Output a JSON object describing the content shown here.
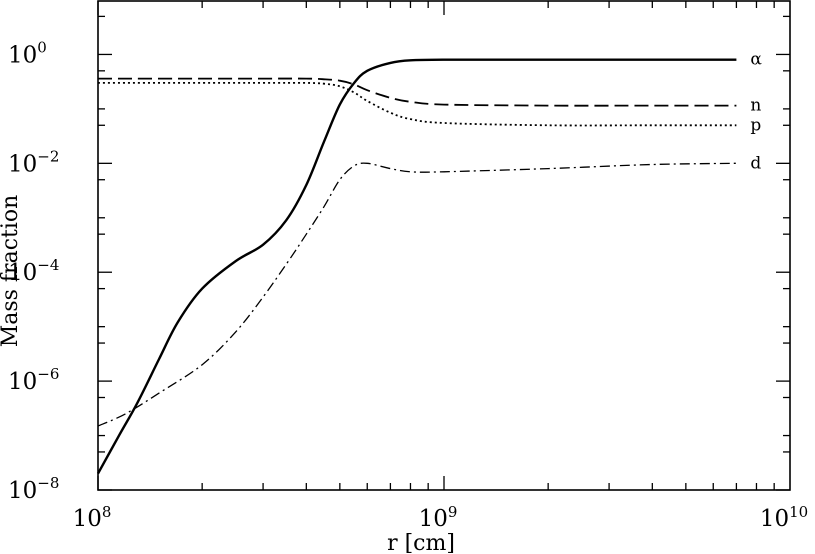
{
  "chart_data": {
    "type": "line",
    "xlabel": "r [cm]",
    "ylabel": "Mass fraction",
    "xscale": "log",
    "yscale": "log",
    "xlim": [
      100000000,
      10000000000
    ],
    "ylim": [
      1e-08,
      10
    ],
    "x_ticks": [
      {
        "base": "10",
        "exp": "8",
        "value": 100000000
      },
      {
        "base": "10",
        "exp": "9",
        "value": 1000000000
      },
      {
        "base": "10",
        "exp": "10",
        "value": 10000000000
      }
    ],
    "y_ticks": [
      {
        "base": "10",
        "exp": "−8",
        "value": 1e-08
      },
      {
        "base": "10",
        "exp": "−6",
        "value": 1e-06
      },
      {
        "base": "10",
        "exp": "−4",
        "value": 0.0001
      },
      {
        "base": "10",
        "exp": "−2",
        "value": 0.01
      },
      {
        "base": "10",
        "exp": "0",
        "value": 1
      }
    ],
    "grid": false,
    "legend": "inline labels at right end of curves",
    "series": [
      {
        "name": "α",
        "style": "solid",
        "x": [
          100000000,
          115000000,
          130000000,
          150000000,
          170000000,
          200000000,
          250000000,
          300000000,
          350000000,
          400000000,
          450000000,
          500000000,
          550000000,
          600000000,
          700000000,
          800000000,
          1000000000,
          2000000000,
          4000000000,
          7000000000
        ],
        "y": [
          2e-08,
          1e-07,
          4e-07,
          2.5e-06,
          1.2e-05,
          5e-05,
          0.00016,
          0.00032,
          0.0009,
          0.004,
          0.025,
          0.12,
          0.3,
          0.5,
          0.7,
          0.78,
          0.8,
          0.8,
          0.8,
          0.8
        ]
      },
      {
        "name": "n",
        "style": "dashed",
        "x": [
          100000000,
          200000000,
          300000000,
          400000000,
          450000000,
          500000000,
          550000000,
          600000000,
          700000000,
          800000000,
          1000000000,
          2000000000,
          4000000000,
          7000000000
        ],
        "y": [
          0.36,
          0.36,
          0.36,
          0.36,
          0.35,
          0.33,
          0.28,
          0.22,
          0.16,
          0.135,
          0.12,
          0.115,
          0.115,
          0.115
        ]
      },
      {
        "name": "p",
        "style": "dotted",
        "x": [
          100000000,
          200000000,
          300000000,
          400000000,
          450000000,
          500000000,
          550000000,
          600000000,
          700000000,
          800000000,
          1000000000,
          2000000000,
          4000000000,
          7000000000
        ],
        "y": [
          0.3,
          0.3,
          0.3,
          0.3,
          0.29,
          0.26,
          0.2,
          0.14,
          0.085,
          0.065,
          0.055,
          0.05,
          0.05,
          0.05
        ]
      },
      {
        "name": "d",
        "style": "dashdot",
        "x": [
          100000000,
          120000000,
          150000000,
          200000000,
          250000000,
          300000000,
          350000000,
          400000000,
          450000000,
          500000000,
          550000000,
          600000000,
          700000000,
          800000000,
          1000000000,
          2000000000,
          4000000000,
          7000000000
        ],
        "y": [
          1.5e-07,
          2.5e-07,
          6e-07,
          2e-06,
          8e-06,
          3.5e-05,
          0.00014,
          0.0005,
          0.0016,
          0.005,
          0.009,
          0.01,
          0.008,
          0.007,
          0.007,
          0.008,
          0.0095,
          0.01
        ]
      }
    ]
  }
}
